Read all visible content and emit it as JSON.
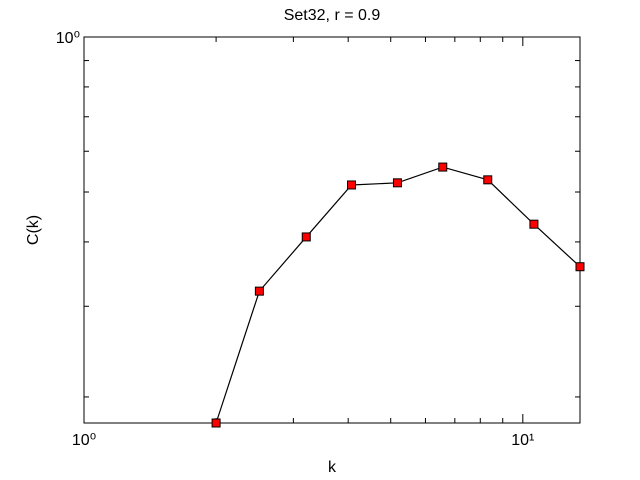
{
  "chart_data": {
    "type": "line",
    "title": "Set32, r = 0.9",
    "xlabel": "k",
    "ylabel": "C(k)",
    "x": [
      2,
      2.51,
      3.21,
      4.07,
      5.18,
      6.57,
      8.32,
      10.6,
      13.5
    ],
    "series": [
      {
        "color": "#ff0000",
        "line_color": "#000000",
        "marker": "square",
        "values": [
          0.178,
          0.321,
          0.409,
          0.516,
          0.521,
          0.559,
          0.528,
          0.433,
          0.358
        ]
      }
    ],
    "xscale": "log",
    "yscale": "log",
    "xlim": [
      1,
      13.5
    ],
    "ylim": [
      0.178,
      1
    ],
    "xticks": [
      {
        "value": 1,
        "label": "10⁰"
      },
      {
        "value": 10,
        "label": "10¹"
      }
    ],
    "yticks": [
      {
        "value": 1,
        "label": "10⁰"
      }
    ],
    "xminorticks": [
      2,
      3,
      4,
      5,
      6,
      7,
      8,
      9
    ],
    "yminorticks": [
      0.2,
      0.3,
      0.4,
      0.5,
      0.6,
      0.7,
      0.8,
      0.9
    ]
  }
}
